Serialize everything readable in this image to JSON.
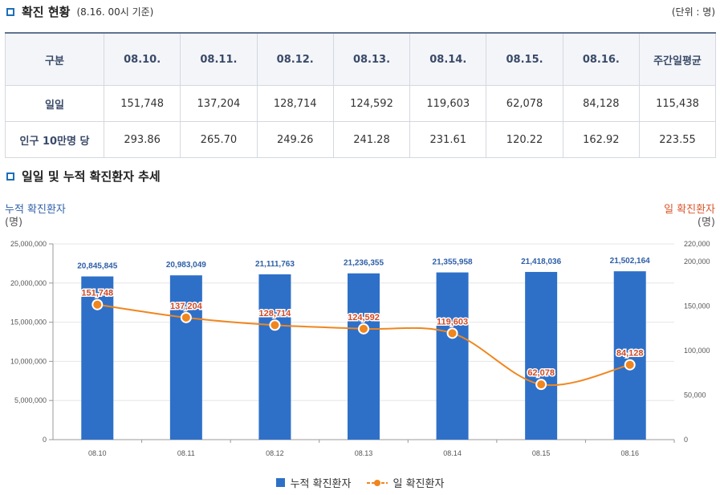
{
  "section1": {
    "title": "확진 현황",
    "subtitle": "(8.16. 00시 기준)",
    "unit": "(단위 : 명)"
  },
  "table": {
    "corner": "구분",
    "headers": [
      "08.10.",
      "08.11.",
      "08.12.",
      "08.13.",
      "08.14.",
      "08.15.",
      "08.16.",
      "주간일평균"
    ],
    "rows": [
      {
        "label": "일일",
        "values": [
          "151,748",
          "137,204",
          "128,714",
          "124,592",
          "119,603",
          "62,078",
          "84,128",
          "115,438"
        ]
      },
      {
        "label": "인구 10만명 당",
        "values": [
          "293.86",
          "265.70",
          "249.26",
          "241.28",
          "231.61",
          "120.22",
          "162.92",
          "223.55"
        ]
      }
    ]
  },
  "section2": {
    "title": "일일 및 누적 확진환자 추세"
  },
  "axes": {
    "left_title": "누적 확진환자",
    "left_unit": "(명)",
    "right_title": "일 확진환자",
    "right_unit": "(명)"
  },
  "legend": {
    "bar": "누적 확진환자",
    "line": "일 확진환자"
  },
  "colors": {
    "bar": "#2e70c8",
    "line": "#f0861e",
    "left_axis_title": "#2e5fa8",
    "right_axis_title": "#d9542a",
    "bar_label": "#2e5fa8",
    "line_label": "#d04a24"
  },
  "chart_data": {
    "type": "bar+line",
    "categories": [
      "08.10",
      "08.11",
      "08.12",
      "08.13",
      "08.14",
      "08.15",
      "08.16"
    ],
    "series": [
      {
        "name": "누적 확진환자",
        "type": "bar",
        "axis": "left",
        "values": [
          20845845,
          20983049,
          21111763,
          21236355,
          21355958,
          21418036,
          21502164
        ],
        "labels": [
          "20,845,845",
          "20,983,049",
          "21,111,763",
          "21,236,355",
          "21,355,958",
          "21,418,036",
          "21,502,164"
        ]
      },
      {
        "name": "일 확진환자",
        "type": "line",
        "axis": "right",
        "values": [
          151748,
          137204,
          128714,
          124592,
          119603,
          62078,
          84128
        ],
        "labels": [
          "151,748",
          "137,204",
          "128,714",
          "124,592",
          "119,603",
          "62,078",
          "84,128"
        ]
      }
    ],
    "left_axis": {
      "min": 0,
      "max": 25000000,
      "ticks": [
        0,
        5000000,
        10000000,
        15000000,
        20000000,
        25000000
      ],
      "tick_labels": [
        "0",
        "5,000,000",
        "10,000,000",
        "15,000,000",
        "20,000,000",
        "25,000,000"
      ]
    },
    "right_axis": {
      "min": 0,
      "max": 220000,
      "ticks": [
        0,
        50000,
        100000,
        150000,
        200000,
        220000
      ],
      "tick_labels": [
        "0",
        "50,000",
        "100,000",
        "150,000",
        "200,000",
        "220,000"
      ]
    },
    "legend_position": "bottom-center"
  }
}
